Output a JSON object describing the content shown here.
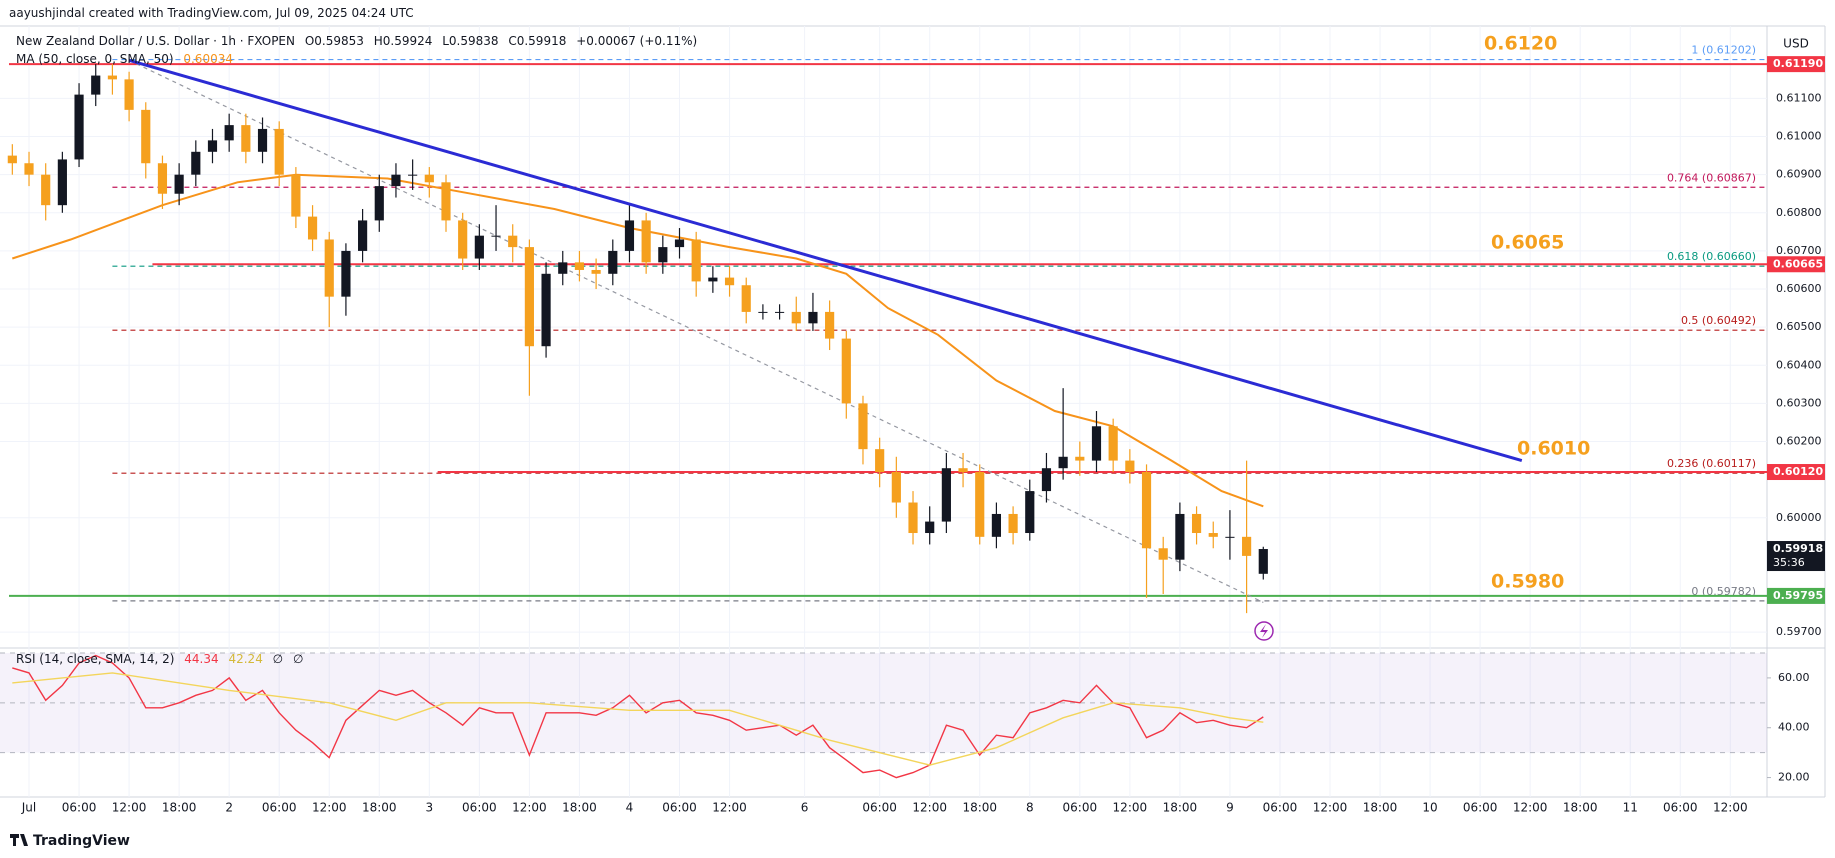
{
  "attribution": "aayushjindal created with TradingView.com, Jul 09, 2025 04:24 UTC",
  "footer": "TradingView",
  "chart_data": [
    {
      "type": "candlestick",
      "title": "New Zealand Dollar / U.S. Dollar · 1h · FXOPEN",
      "legend_values": [
        "O0.59853",
        "H0.59924",
        "L0.59838",
        "C0.59918",
        "+0.00067 (+0.11%)"
      ],
      "currency": "USD",
      "up_color": "#131722",
      "down_color": "#f5a01e",
      "x": [
        -2,
        0,
        2,
        4,
        6,
        8,
        10,
        12,
        14,
        16,
        18,
        20,
        22,
        24,
        26,
        28,
        30,
        32,
        34,
        36,
        38,
        40,
        42,
        44,
        46,
        48,
        50,
        52,
        54,
        56,
        58,
        60,
        62,
        64,
        66,
        68,
        70,
        72,
        74,
        76,
        78,
        80,
        82,
        84,
        86,
        88,
        90,
        92,
        94,
        96,
        98,
        100,
        102,
        104,
        106,
        108,
        110,
        112,
        114,
        116,
        118,
        120,
        122,
        124,
        126,
        128,
        130,
        132,
        134,
        136,
        138,
        140,
        142,
        144,
        146,
        148
      ],
      "open": [
        0.6095,
        0.6093,
        0.609,
        0.6082,
        0.6094,
        0.6111,
        0.6116,
        0.6115,
        0.6107,
        0.6093,
        0.6085,
        0.609,
        0.6096,
        0.6099,
        0.6103,
        0.6096,
        0.6102,
        0.609,
        0.6079,
        0.6073,
        0.6058,
        0.607,
        0.6078,
        0.6087,
        0.609,
        0.609,
        0.6088,
        0.6078,
        0.6068,
        0.6074,
        0.6074,
        0.6071,
        0.6045,
        0.6064,
        0.6067,
        0.6065,
        0.6064,
        0.607,
        0.6078,
        0.6067,
        0.6071,
        0.6073,
        0.6062,
        0.6063,
        0.6061,
        0.6054,
        0.6054,
        0.6054,
        0.6051,
        0.6054,
        0.6047,
        0.603,
        0.6018,
        0.6012,
        0.6004,
        0.5996,
        0.5999,
        0.6013,
        0.6012,
        0.5995,
        0.6001,
        0.5996,
        0.6007,
        0.6013,
        0.6016,
        0.6015,
        0.6024,
        0.6015,
        0.6012,
        0.5992,
        0.5989,
        0.6001,
        0.5996,
        0.5995,
        0.5995,
        0.59853
      ],
      "high": [
        0.6098,
        0.6096,
        0.6093,
        0.6096,
        0.6114,
        0.6119,
        0.6119,
        0.6117,
        0.6109,
        0.6095,
        0.6093,
        0.6099,
        0.6102,
        0.6106,
        0.6106,
        0.6105,
        0.6104,
        0.6092,
        0.6082,
        0.6075,
        0.6072,
        0.6081,
        0.609,
        0.6093,
        0.6094,
        0.6092,
        0.609,
        0.608,
        0.6077,
        0.6082,
        0.6077,
        0.6073,
        0.6067,
        0.607,
        0.607,
        0.6068,
        0.6073,
        0.6082,
        0.608,
        0.6074,
        0.6076,
        0.6075,
        0.6066,
        0.6066,
        0.6063,
        0.6056,
        0.6056,
        0.6058,
        0.6059,
        0.6057,
        0.6049,
        0.6032,
        0.6021,
        0.6016,
        0.6007,
        0.6003,
        0.6017,
        0.6017,
        0.6014,
        0.6004,
        0.6003,
        0.601,
        0.6017,
        0.6034,
        0.602,
        0.6028,
        0.6026,
        0.6018,
        0.6014,
        0.5995,
        0.6004,
        0.6003,
        0.5999,
        0.6002,
        0.6015,
        0.59924
      ],
      "low": [
        0.609,
        0.6087,
        0.6078,
        0.608,
        0.6092,
        0.6108,
        0.6111,
        0.6104,
        0.6089,
        0.6081,
        0.6082,
        0.6087,
        0.6093,
        0.6096,
        0.6093,
        0.6093,
        0.6087,
        0.6076,
        0.607,
        0.605,
        0.6053,
        0.6067,
        0.6075,
        0.6084,
        0.6086,
        0.6084,
        0.6075,
        0.6065,
        0.6065,
        0.607,
        0.6067,
        0.6032,
        0.6042,
        0.6061,
        0.6062,
        0.606,
        0.6061,
        0.6067,
        0.6064,
        0.6064,
        0.6068,
        0.6058,
        0.6059,
        0.6058,
        0.6051,
        0.6052,
        0.6052,
        0.6049,
        0.6049,
        0.6044,
        0.6026,
        0.6014,
        0.6008,
        0.6,
        0.5993,
        0.5993,
        0.5996,
        0.6008,
        0.5993,
        0.5992,
        0.5993,
        0.5994,
        0.6004,
        0.601,
        0.6011,
        0.6012,
        0.6012,
        0.6009,
        0.5979,
        0.598,
        0.5986,
        0.5993,
        0.5992,
        0.5989,
        0.5975,
        0.59838
      ],
      "close": [
        0.6093,
        0.609,
        0.6082,
        0.6094,
        0.6111,
        0.6116,
        0.6115,
        0.6107,
        0.6093,
        0.6085,
        0.609,
        0.6096,
        0.6099,
        0.6103,
        0.6096,
        0.6102,
        0.609,
        0.6079,
        0.6073,
        0.6058,
        0.607,
        0.6078,
        0.6087,
        0.609,
        0.609,
        0.6088,
        0.6078,
        0.6068,
        0.6074,
        0.6074,
        0.6071,
        0.6045,
        0.6064,
        0.6067,
        0.6065,
        0.6064,
        0.607,
        0.6078,
        0.6067,
        0.6071,
        0.6073,
        0.6062,
        0.6063,
        0.6061,
        0.6054,
        0.6054,
        0.6054,
        0.6051,
        0.6054,
        0.6047,
        0.603,
        0.6018,
        0.6012,
        0.6004,
        0.5996,
        0.5999,
        0.6013,
        0.6012,
        0.5995,
        0.6001,
        0.5996,
        0.6007,
        0.6013,
        0.6016,
        0.6015,
        0.6024,
        0.6015,
        0.6012,
        0.5992,
        0.5989,
        0.6001,
        0.5996,
        0.5995,
        0.5995,
        0.599,
        0.59918
      ],
      "ma": {
        "name": "MA (50, close, 0, SMA, 50)",
        "value_label": "0.60034",
        "color": "#f7931a",
        "x": [
          -2,
          5,
          16,
          25,
          32,
          43,
          53,
          63,
          72,
          84,
          92,
          98,
          103,
          109,
          116,
          123,
          130,
          137,
          143,
          148
        ],
        "values": [
          0.6068,
          0.6073,
          0.6082,
          0.6088,
          0.609,
          0.6089,
          0.6085,
          0.6081,
          0.6076,
          0.6071,
          0.6068,
          0.6064,
          0.6055,
          0.6048,
          0.6036,
          0.6028,
          0.6024,
          0.6015,
          0.6007,
          0.6003
        ]
      },
      "trendline": {
        "color": "#2b2bd4",
        "x": [
          12,
          179
        ],
        "values": [
          0.612,
          0.6015
        ]
      },
      "diagonal": {
        "color": "#9598a1",
        "x": [
          12,
          148
        ],
        "values": [
          0.612,
          0.59778
        ]
      },
      "levels": [
        {
          "value": 0.6119,
          "color": "#f23645",
          "from": -2.4
        },
        {
          "value": 0.60665,
          "color": "#f23645",
          "from": 14.8
        },
        {
          "value": 0.6012,
          "color": "#f23645",
          "from": 49
        },
        {
          "value": 0.59795,
          "color": "#4caf50",
          "from": -2.4
        }
      ],
      "fib": [
        {
          "label": "1 (0.61202)",
          "value": 0.61202,
          "color": "#5b9cf6"
        },
        {
          "label": "0.764 (0.60867)",
          "value": 0.60867,
          "color": "#c2185b"
        },
        {
          "label": "0.618 (0.60660)",
          "value": 0.6066,
          "color": "#089981"
        },
        {
          "label": "0.5 (0.60492)",
          "value": 0.60492,
          "color": "#b71c1c"
        },
        {
          "label": "0.236 (0.60117)",
          "value": 0.60117,
          "color": "#b71c1c"
        },
        {
          "label": "0 (0.59782)",
          "value": 0.59782,
          "color": "#787b86"
        }
      ],
      "fib_from": 10,
      "annotations": [
        "0.6120",
        "0.6065",
        "0.6010",
        "0.5980"
      ],
      "price_tags": [
        {
          "value": 0.6119,
          "label": "0.61190",
          "color": "#f23645"
        },
        {
          "value": 0.60665,
          "label": "0.60665",
          "color": "#f23645"
        },
        {
          "value": 0.6012,
          "label": "0.60120",
          "color": "#f23645"
        },
        {
          "value": 0.59918,
          "label": "0.59918",
          "sub": "35:36",
          "color": "#131722"
        },
        {
          "value": 0.59795,
          "label": "0.59795",
          "color": "#4caf50"
        }
      ],
      "xlim": [
        -2.4,
        208.4
      ],
      "xticks": [
        {
          "value": 0,
          "label": "Jul"
        },
        {
          "value": 6,
          "label": "06:00"
        },
        {
          "value": 12,
          "label": "12:00"
        },
        {
          "value": 18,
          "label": "18:00"
        },
        {
          "value": 24,
          "label": "2"
        },
        {
          "value": 30,
          "label": "06:00"
        },
        {
          "value": 36,
          "label": "12:00"
        },
        {
          "value": 42,
          "label": "18:00"
        },
        {
          "value": 48,
          "label": "3"
        },
        {
          "value": 54,
          "label": "06:00"
        },
        {
          "value": 60,
          "label": "12:00"
        },
        {
          "value": 66,
          "label": "18:00"
        },
        {
          "value": 72,
          "label": "4"
        },
        {
          "value": 78,
          "label": "06:00"
        },
        {
          "value": 84,
          "label": "12:00"
        },
        {
          "value": 93,
          "label": "6"
        },
        {
          "value": 102,
          "label": "06:00"
        },
        {
          "value": 108,
          "label": "12:00"
        },
        {
          "value": 114,
          "label": "18:00"
        },
        {
          "value": 120,
          "label": "8"
        },
        {
          "value": 126,
          "label": "06:00"
        },
        {
          "value": 132,
          "label": "12:00"
        },
        {
          "value": 138,
          "label": "18:00"
        },
        {
          "value": 144,
          "label": "9"
        },
        {
          "value": 150,
          "label": "06:00"
        },
        {
          "value": 156,
          "label": "12:00"
        },
        {
          "value": 162,
          "label": "18:00"
        },
        {
          "value": 168,
          "label": "10"
        },
        {
          "value": 174,
          "label": "06:00"
        },
        {
          "value": 180,
          "label": "12:00"
        },
        {
          "value": 186,
          "label": "18:00"
        },
        {
          "value": 192,
          "label": "11"
        },
        {
          "value": 198,
          "label": "06:00"
        },
        {
          "value": 204,
          "label": "12:00"
        }
      ],
      "ylim": [
        0.59661,
        0.6129
      ],
      "yticks": [
        {
          "value": 0.611,
          "label": "0.61100"
        },
        {
          "value": 0.61,
          "label": "0.61000"
        },
        {
          "value": 0.609,
          "label": "0.60900"
        },
        {
          "value": 0.608,
          "label": "0.60800"
        },
        {
          "value": 0.607,
          "label": "0.60700"
        },
        {
          "value": 0.606,
          "label": "0.60600"
        },
        {
          "value": 0.605,
          "label": "0.60500"
        },
        {
          "value": 0.604,
          "label": "0.60400"
        },
        {
          "value": 0.603,
          "label": "0.60300"
        },
        {
          "value": 0.602,
          "label": "0.60200"
        },
        {
          "value": 0.6,
          "label": "0.60000"
        },
        {
          "value": 0.597,
          "label": "0.59700"
        }
      ],
      "grid": true
    },
    {
      "type": "line",
      "title": "RSI (14, close, SMA, 14, 2)",
      "legend_values": [
        "44.34",
        "42.24",
        "∅",
        "∅"
      ],
      "series": [
        {
          "color": "#f23645",
          "x": [
            -2,
            0,
            2,
            4,
            6,
            8,
            10,
            12,
            14,
            16,
            18,
            20,
            22,
            24,
            26,
            28,
            30,
            32,
            34,
            36,
            38,
            40,
            42,
            44,
            46,
            48,
            50,
            52,
            54,
            56,
            58,
            60,
            62,
            64,
            66,
            68,
            70,
            72,
            74,
            76,
            78,
            80,
            82,
            84,
            86,
            88,
            90,
            92,
            94,
            96,
            98,
            100,
            102,
            104,
            106,
            108,
            110,
            112,
            114,
            116,
            118,
            120,
            122,
            124,
            126,
            128,
            130,
            132,
            134,
            136,
            138,
            140,
            142,
            144,
            146,
            148
          ],
          "values": [
            64,
            62,
            51,
            57,
            66,
            69,
            66,
            60,
            48,
            48,
            50,
            53,
            55,
            60,
            51,
            55,
            46,
            39,
            34,
            28,
            43,
            49,
            55,
            53,
            55,
            50,
            46,
            41,
            48,
            46,
            46,
            29,
            46,
            46,
            46,
            45,
            48,
            53,
            46,
            50,
            51,
            46,
            45,
            43,
            39,
            40,
            41,
            37,
            41,
            32,
            27,
            22,
            23,
            20,
            22,
            25,
            41,
            39,
            29,
            37,
            36,
            46,
            48,
            51,
            50,
            57,
            50,
            48,
            36,
            39,
            46,
            42,
            43,
            41,
            40,
            44.34
          ]
        },
        {
          "color": "#f3d55b",
          "x": [
            -2,
            10,
            24,
            36,
            44,
            50,
            60,
            72,
            84,
            96,
            108,
            116,
            124,
            130,
            138,
            144,
            148
          ],
          "values": [
            58,
            62,
            55,
            50,
            43,
            50,
            50,
            47,
            47,
            35,
            25,
            32,
            44,
            50,
            48,
            44,
            42.24
          ]
        }
      ],
      "band": [
        30,
        70
      ],
      "band_lines": [
        70,
        50,
        30
      ],
      "xlim": [
        -2.4,
        208.4
      ],
      "ylim": [
        13,
        71.2
      ],
      "yticks": [
        {
          "value": 60,
          "label": "60.00"
        },
        {
          "value": 40,
          "label": "40.00"
        },
        {
          "value": 20,
          "label": "20.00"
        }
      ]
    }
  ]
}
